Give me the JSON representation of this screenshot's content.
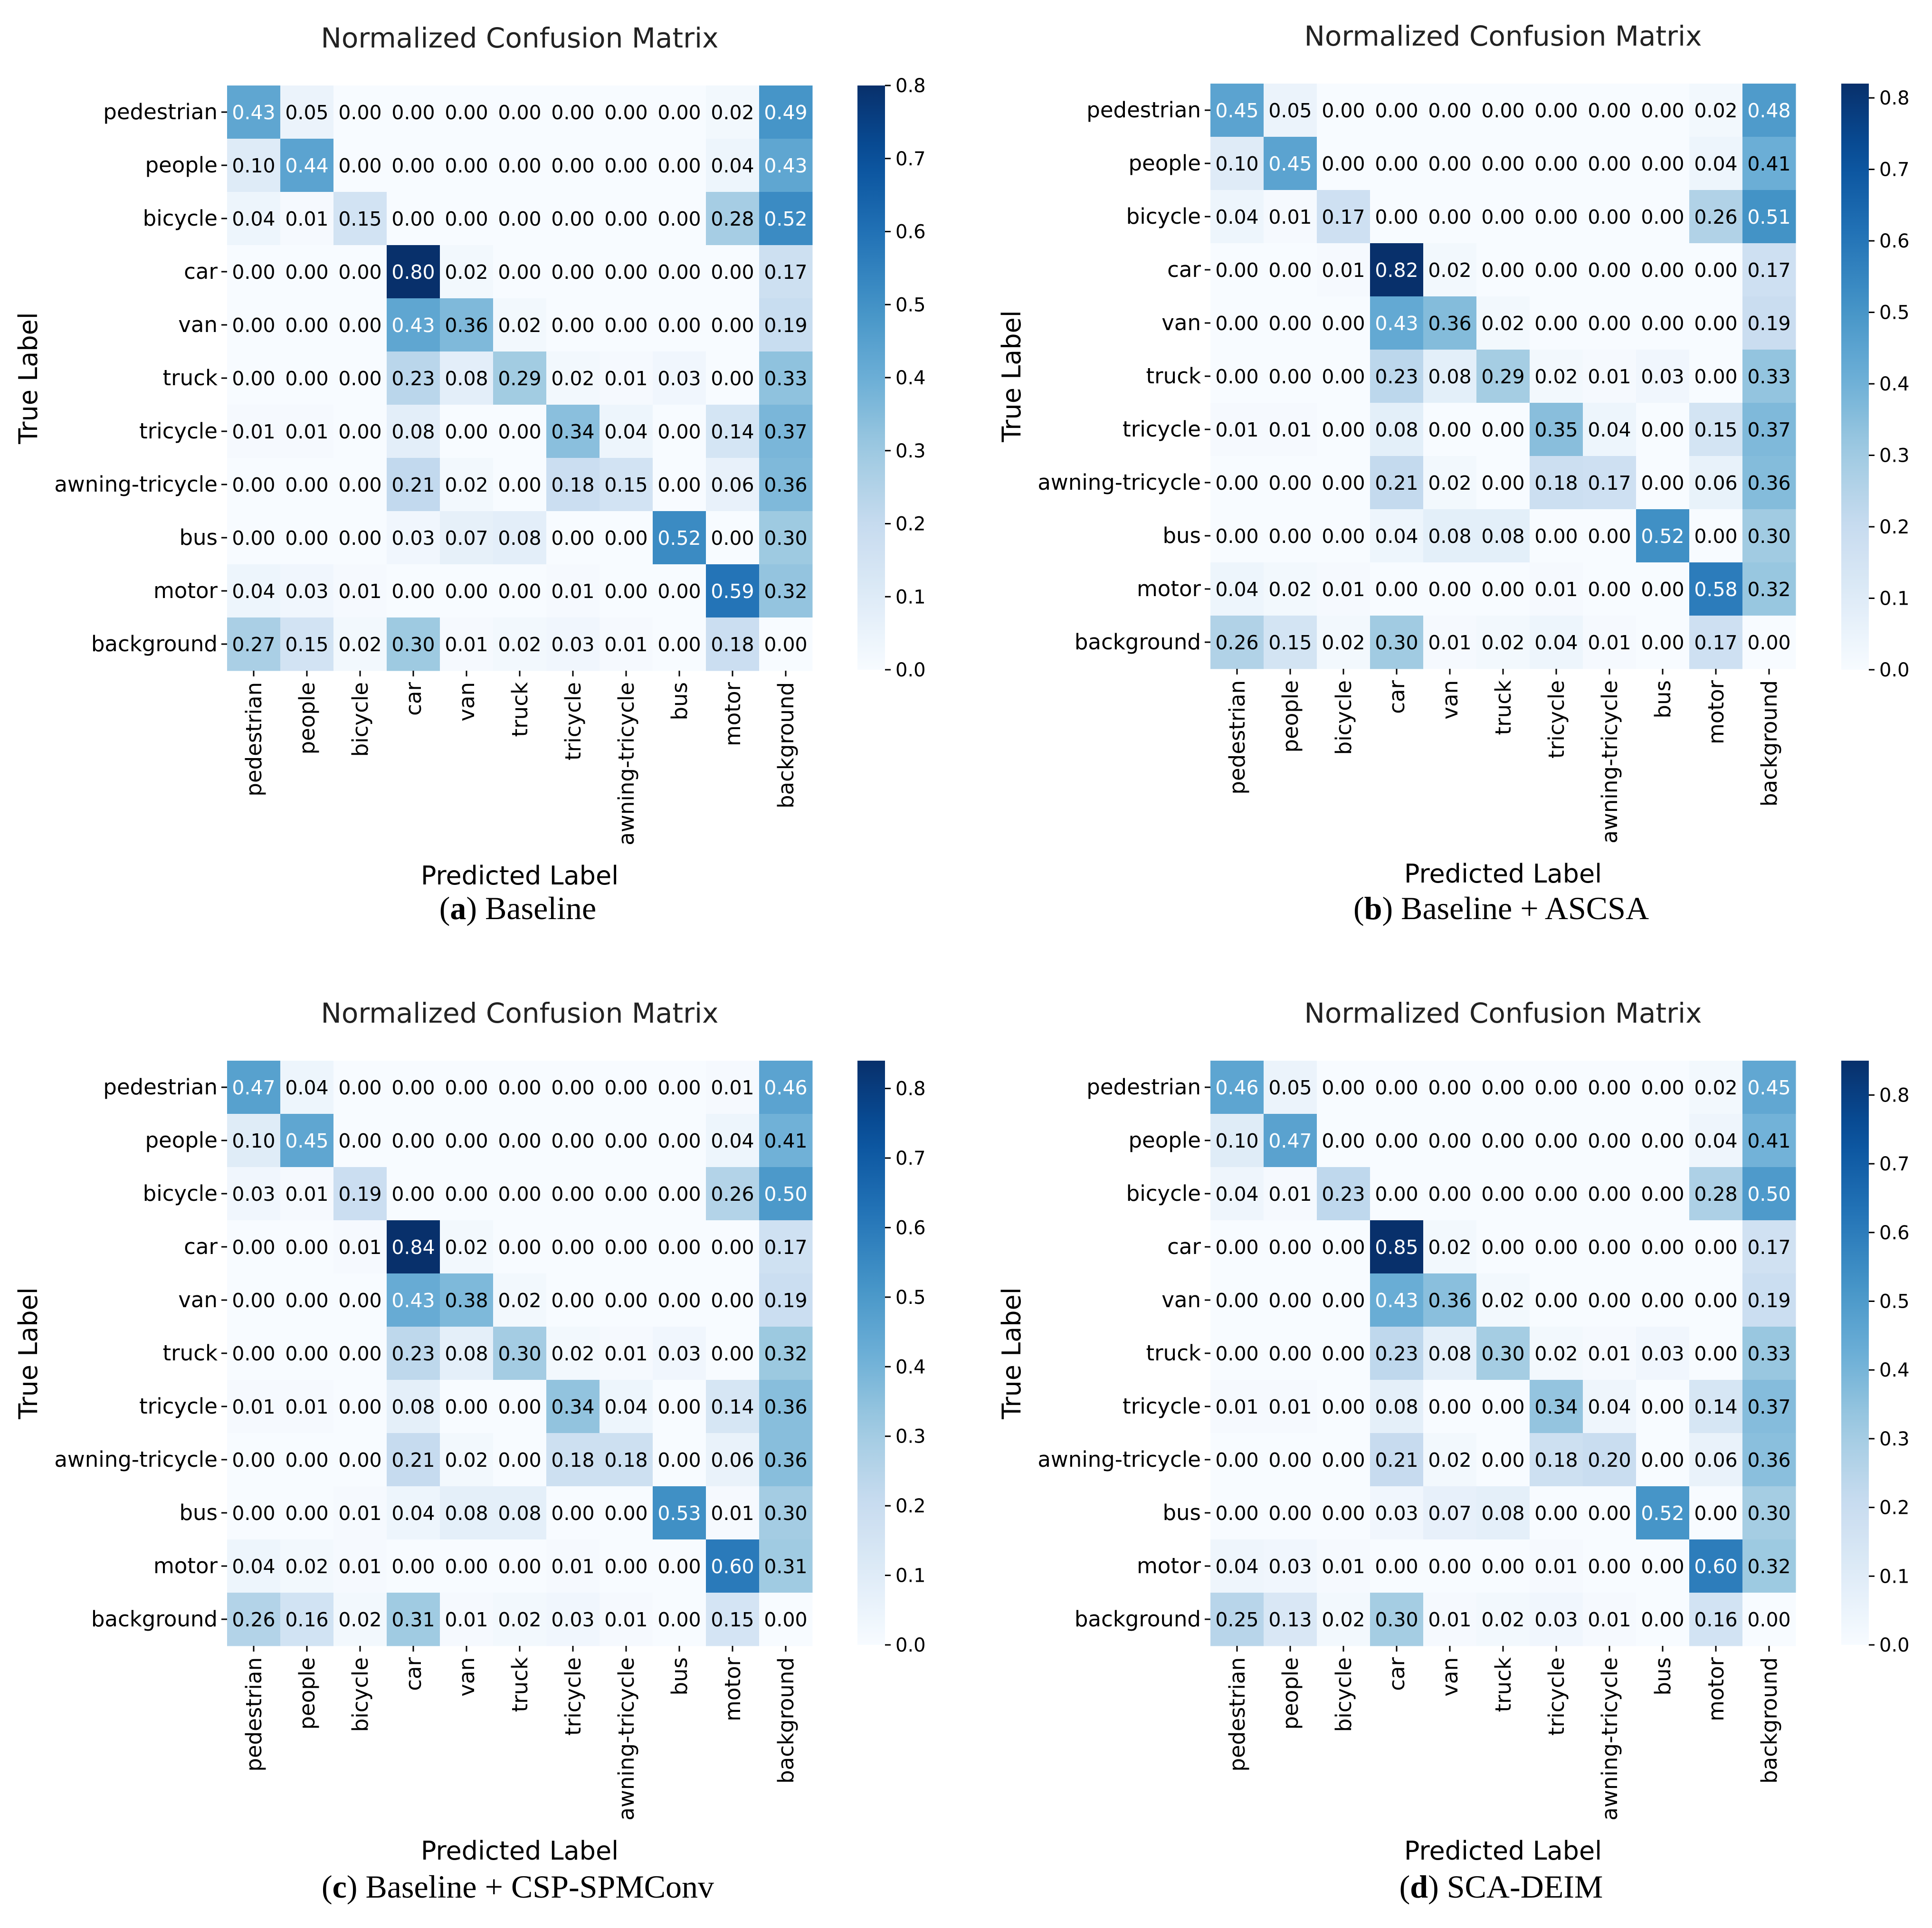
{
  "figure": {
    "panels": [
      {
        "caption_letter": "a",
        "caption_text": " Baseline"
      },
      {
        "caption_letter": "b",
        "caption_text": " Baseline + ASCSA"
      },
      {
        "caption_letter": "c",
        "caption_text": " Baseline + CSP-SPMConv"
      },
      {
        "caption_letter": "d",
        "caption_text": " SCA-DEIM"
      }
    ],
    "colors": {
      "low": "#f7fbff",
      "high": "#08306b",
      "text_dark": "#000000",
      "text_light": "#ffffff"
    }
  },
  "chart_data": [
    {
      "type": "heatmap",
      "title": "Normalized Confusion Matrix",
      "xlabel": "Predicted Label",
      "ylabel": "True Label",
      "categories": [
        "pedestrian",
        "people",
        "bicycle",
        "car",
        "van",
        "truck",
        "tricycle",
        "awning-tricycle",
        "bus",
        "motor",
        "background"
      ],
      "colorbar": {
        "range": [
          0.0,
          0.8
        ],
        "ticks": [
          "0.0",
          "0.1",
          "0.2",
          "0.3",
          "0.4",
          "0.5",
          "0.6",
          "0.7",
          "0.8"
        ]
      },
      "values": [
        [
          0.43,
          0.05,
          0.0,
          0.0,
          0.0,
          0.0,
          0.0,
          0.0,
          0.0,
          0.02,
          0.49
        ],
        [
          0.1,
          0.44,
          0.0,
          0.0,
          0.0,
          0.0,
          0.0,
          0.0,
          0.0,
          0.04,
          0.43
        ],
        [
          0.04,
          0.01,
          0.15,
          0.0,
          0.0,
          0.0,
          0.0,
          0.0,
          0.0,
          0.28,
          0.52
        ],
        [
          0.0,
          0.0,
          0.0,
          0.8,
          0.02,
          0.0,
          0.0,
          0.0,
          0.0,
          0.0,
          0.17
        ],
        [
          0.0,
          0.0,
          0.0,
          0.43,
          0.36,
          0.02,
          0.0,
          0.0,
          0.0,
          0.0,
          0.19
        ],
        [
          0.0,
          0.0,
          0.0,
          0.23,
          0.08,
          0.29,
          0.02,
          0.01,
          0.03,
          0.0,
          0.33
        ],
        [
          0.01,
          0.01,
          0.0,
          0.08,
          0.0,
          0.0,
          0.34,
          0.04,
          0.0,
          0.14,
          0.37
        ],
        [
          0.0,
          0.0,
          0.0,
          0.21,
          0.02,
          0.0,
          0.18,
          0.15,
          0.0,
          0.06,
          0.36
        ],
        [
          0.0,
          0.0,
          0.0,
          0.03,
          0.07,
          0.08,
          0.0,
          0.0,
          0.52,
          0.0,
          0.3
        ],
        [
          0.04,
          0.03,
          0.01,
          0.0,
          0.0,
          0.0,
          0.01,
          0.0,
          0.0,
          0.59,
          0.32
        ],
        [
          0.27,
          0.15,
          0.02,
          0.3,
          0.01,
          0.02,
          0.03,
          0.01,
          0.0,
          0.18,
          0.0
        ]
      ]
    },
    {
      "type": "heatmap",
      "title": "Normalized Confusion Matrix",
      "xlabel": "Predicted Label",
      "ylabel": "True Label",
      "categories": [
        "pedestrian",
        "people",
        "bicycle",
        "car",
        "van",
        "truck",
        "tricycle",
        "awning-tricycle",
        "bus",
        "motor",
        "background"
      ],
      "colorbar": {
        "range": [
          0.0,
          0.82
        ],
        "ticks": [
          "0.0",
          "0.1",
          "0.2",
          "0.3",
          "0.4",
          "0.5",
          "0.6",
          "0.7",
          "0.8"
        ]
      },
      "values": [
        [
          0.45,
          0.05,
          0.0,
          0.0,
          0.0,
          0.0,
          0.0,
          0.0,
          0.0,
          0.02,
          0.48
        ],
        [
          0.1,
          0.45,
          0.0,
          0.0,
          0.0,
          0.0,
          0.0,
          0.0,
          0.0,
          0.04,
          0.41
        ],
        [
          0.04,
          0.01,
          0.17,
          0.0,
          0.0,
          0.0,
          0.0,
          0.0,
          0.0,
          0.26,
          0.51
        ],
        [
          0.0,
          0.0,
          0.01,
          0.82,
          0.02,
          0.0,
          0.0,
          0.0,
          0.0,
          0.0,
          0.17
        ],
        [
          0.0,
          0.0,
          0.0,
          0.43,
          0.36,
          0.02,
          0.0,
          0.0,
          0.0,
          0.0,
          0.19
        ],
        [
          0.0,
          0.0,
          0.0,
          0.23,
          0.08,
          0.29,
          0.02,
          0.01,
          0.03,
          0.0,
          0.33
        ],
        [
          0.01,
          0.01,
          0.0,
          0.08,
          0.0,
          0.0,
          0.35,
          0.04,
          0.0,
          0.15,
          0.37
        ],
        [
          0.0,
          0.0,
          0.0,
          0.21,
          0.02,
          0.0,
          0.18,
          0.17,
          0.0,
          0.06,
          0.36
        ],
        [
          0.0,
          0.0,
          0.0,
          0.04,
          0.08,
          0.08,
          0.0,
          0.0,
          0.52,
          0.0,
          0.3
        ],
        [
          0.04,
          0.02,
          0.01,
          0.0,
          0.0,
          0.0,
          0.01,
          0.0,
          0.0,
          0.58,
          0.32
        ],
        [
          0.26,
          0.15,
          0.02,
          0.3,
          0.01,
          0.02,
          0.04,
          0.01,
          0.0,
          0.17,
          0.0
        ]
      ]
    },
    {
      "type": "heatmap",
      "title": "Normalized Confusion Matrix",
      "xlabel": "Predicted Label",
      "ylabel": "True Label",
      "categories": [
        "pedestrian",
        "people",
        "bicycle",
        "car",
        "van",
        "truck",
        "tricycle",
        "awning-tricycle",
        "bus",
        "motor",
        "background"
      ],
      "colorbar": {
        "range": [
          0.0,
          0.84
        ],
        "ticks": [
          "0.0",
          "0.1",
          "0.2",
          "0.3",
          "0.4",
          "0.5",
          "0.6",
          "0.7",
          "0.8"
        ]
      },
      "values": [
        [
          0.47,
          0.04,
          0.0,
          0.0,
          0.0,
          0.0,
          0.0,
          0.0,
          0.0,
          0.01,
          0.46
        ],
        [
          0.1,
          0.45,
          0.0,
          0.0,
          0.0,
          0.0,
          0.0,
          0.0,
          0.0,
          0.04,
          0.41
        ],
        [
          0.03,
          0.01,
          0.19,
          0.0,
          0.0,
          0.0,
          0.0,
          0.0,
          0.0,
          0.26,
          0.5
        ],
        [
          0.0,
          0.0,
          0.01,
          0.84,
          0.02,
          0.0,
          0.0,
          0.0,
          0.0,
          0.0,
          0.17
        ],
        [
          0.0,
          0.0,
          0.0,
          0.43,
          0.38,
          0.02,
          0.0,
          0.0,
          0.0,
          0.0,
          0.19
        ],
        [
          0.0,
          0.0,
          0.0,
          0.23,
          0.08,
          0.3,
          0.02,
          0.01,
          0.03,
          0.0,
          0.32
        ],
        [
          0.01,
          0.01,
          0.0,
          0.08,
          0.0,
          0.0,
          0.34,
          0.04,
          0.0,
          0.14,
          0.36
        ],
        [
          0.0,
          0.0,
          0.0,
          0.21,
          0.02,
          0.0,
          0.18,
          0.18,
          0.0,
          0.06,
          0.36
        ],
        [
          0.0,
          0.0,
          0.01,
          0.04,
          0.08,
          0.08,
          0.0,
          0.0,
          0.53,
          0.01,
          0.3
        ],
        [
          0.04,
          0.02,
          0.01,
          0.0,
          0.0,
          0.0,
          0.01,
          0.0,
          0.0,
          0.6,
          0.31
        ],
        [
          0.26,
          0.16,
          0.02,
          0.31,
          0.01,
          0.02,
          0.03,
          0.01,
          0.0,
          0.15,
          0.0
        ]
      ]
    },
    {
      "type": "heatmap",
      "title": "Normalized Confusion Matrix",
      "xlabel": "Predicted Label",
      "ylabel": "True Label",
      "categories": [
        "pedestrian",
        "people",
        "bicycle",
        "car",
        "van",
        "truck",
        "tricycle",
        "awning-tricycle",
        "bus",
        "motor",
        "background"
      ],
      "colorbar": {
        "range": [
          0.0,
          0.85
        ],
        "ticks": [
          "0.0",
          "0.1",
          "0.2",
          "0.3",
          "0.4",
          "0.5",
          "0.6",
          "0.7",
          "0.8"
        ]
      },
      "values": [
        [
          0.46,
          0.05,
          0.0,
          0.0,
          0.0,
          0.0,
          0.0,
          0.0,
          0.0,
          0.02,
          0.45
        ],
        [
          0.1,
          0.47,
          0.0,
          0.0,
          0.0,
          0.0,
          0.0,
          0.0,
          0.0,
          0.04,
          0.41
        ],
        [
          0.04,
          0.01,
          0.23,
          0.0,
          0.0,
          0.0,
          0.0,
          0.0,
          0.0,
          0.28,
          0.5
        ],
        [
          0.0,
          0.0,
          0.0,
          0.85,
          0.02,
          0.0,
          0.0,
          0.0,
          0.0,
          0.0,
          0.17
        ],
        [
          0.0,
          0.0,
          0.0,
          0.43,
          0.36,
          0.02,
          0.0,
          0.0,
          0.0,
          0.0,
          0.19
        ],
        [
          0.0,
          0.0,
          0.0,
          0.23,
          0.08,
          0.3,
          0.02,
          0.01,
          0.03,
          0.0,
          0.33
        ],
        [
          0.01,
          0.01,
          0.0,
          0.08,
          0.0,
          0.0,
          0.34,
          0.04,
          0.0,
          0.14,
          0.37
        ],
        [
          0.0,
          0.0,
          0.0,
          0.21,
          0.02,
          0.0,
          0.18,
          0.2,
          0.0,
          0.06,
          0.36
        ],
        [
          0.0,
          0.0,
          0.0,
          0.03,
          0.07,
          0.08,
          0.0,
          0.0,
          0.52,
          0.0,
          0.3
        ],
        [
          0.04,
          0.03,
          0.01,
          0.0,
          0.0,
          0.0,
          0.01,
          0.0,
          0.0,
          0.6,
          0.32
        ],
        [
          0.25,
          0.13,
          0.02,
          0.3,
          0.01,
          0.02,
          0.03,
          0.01,
          0.0,
          0.16,
          0.0
        ]
      ]
    }
  ]
}
